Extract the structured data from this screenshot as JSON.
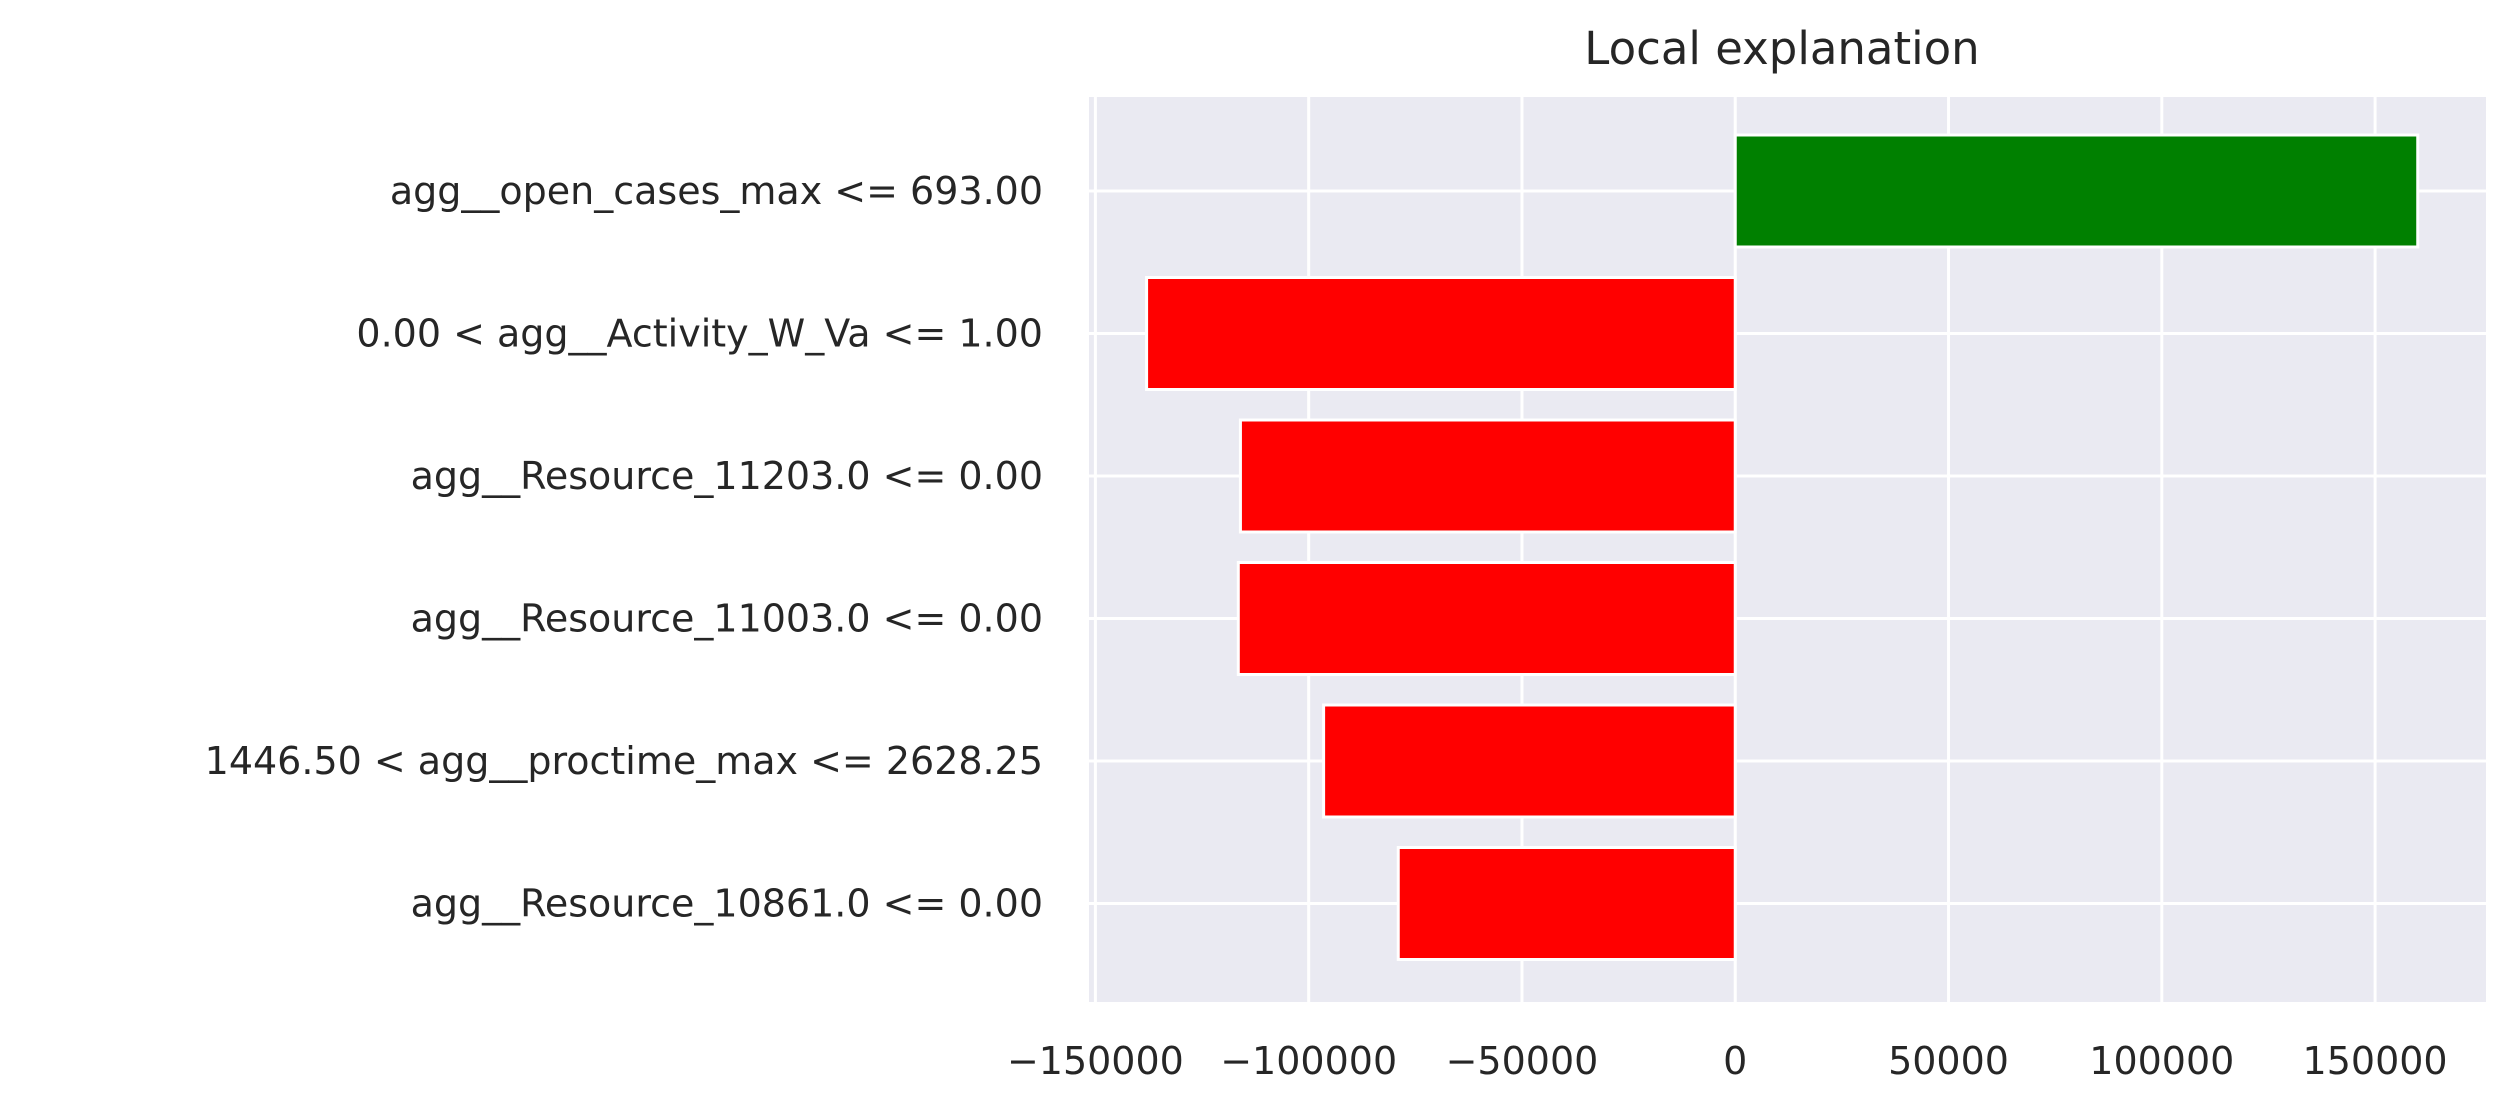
{
  "chart_data": {
    "type": "bar",
    "orientation": "horizontal",
    "title": "Local explanation",
    "categories": [
      "agg__open_cases_max <= 693.00",
      "0.00 < agg__Activity_W_Va <= 1.00",
      "agg__Resource_11203.0 <= 0.00",
      "agg__Resource_11003.0 <= 0.00",
      "1446.50 < agg__proctime_max <= 2628.25",
      "agg__Resource_10861.0 <= 0.00"
    ],
    "values": [
      160000,
      -138000,
      -116000,
      -116500,
      -96500,
      -79000
    ],
    "colors": {
      "positive": "#008000",
      "negative": "#ff0000",
      "plot_background": "#eaeaf2",
      "grid": "#ffffff",
      "text": "#262626"
    },
    "xticks": [
      -150000,
      -100000,
      -50000,
      0,
      50000,
      100000,
      150000
    ],
    "xtick_labels": [
      "−150000",
      "−100000",
      "−50000",
      "0",
      "50000",
      "100000",
      "150000"
    ],
    "xlim": [
      -151500,
      176000
    ],
    "grid": true,
    "xlabel": "",
    "ylabel": ""
  }
}
